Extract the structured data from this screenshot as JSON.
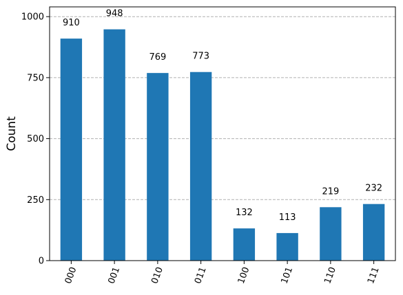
{
  "chart_data": {
    "type": "bar",
    "categories": [
      "000",
      "001",
      "010",
      "011",
      "100",
      "101",
      "110",
      "111"
    ],
    "values": [
      910,
      948,
      769,
      773,
      132,
      113,
      219,
      232
    ],
    "value_labels": [
      "910",
      "948",
      "769",
      "773",
      "132",
      "113",
      "219",
      "232"
    ],
    "title": "",
    "xlabel": "",
    "ylabel": "Count",
    "ylim": [
      0,
      1040
    ],
    "yticks": [
      0,
      250,
      500,
      750,
      1000
    ],
    "ytick_labels": [
      "0",
      "250",
      "500",
      "750",
      "1000"
    ],
    "x_tick_rotation_deg": 70,
    "grid": {
      "y": true,
      "x": false,
      "style": "dashed"
    },
    "bar_color": "#1f77b4",
    "grid_color": "#b0b0b0"
  }
}
